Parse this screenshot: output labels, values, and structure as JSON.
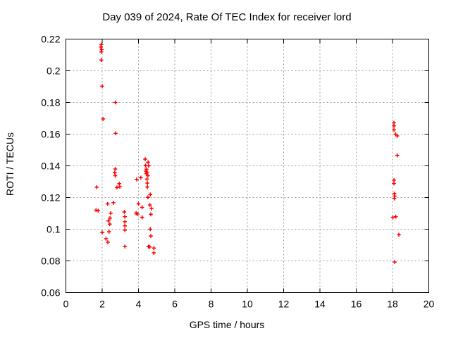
{
  "title": "Day 039 of 2024, Rate Of TEC Index for receiver lord",
  "axes": {
    "xlabel": "GPS time / hours",
    "ylabel": "ROTI / TECUs"
  },
  "colors": {
    "marker": "#ff0000",
    "grid": "#9c9c9c",
    "axis": "#000000",
    "background": "#ffffff"
  },
  "chart_data": {
    "type": "scatter",
    "title": "Day 039 of 2024, Rate Of TEC Index for receiver lord",
    "xlabel": "GPS time / hours",
    "ylabel": "ROTI / TECUs",
    "xlim": [
      0,
      20
    ],
    "ylim": [
      0.06,
      0.22
    ],
    "xticks": [
      0,
      2,
      4,
      6,
      8,
      10,
      12,
      14,
      16,
      18,
      20
    ],
    "xtick_labels": [
      "0",
      "2",
      "4",
      "6",
      "8",
      "10",
      "12",
      "14",
      "16",
      "18",
      "20"
    ],
    "yticks": [
      0.06,
      0.08,
      0.1,
      0.12,
      0.14,
      0.16,
      0.18,
      0.2,
      0.22
    ],
    "ytick_labels": [
      "0.06",
      "0.08",
      "0.1",
      "0.12",
      "0.14",
      "0.16",
      "0.18",
      "0.2",
      "0.22"
    ],
    "grid": true,
    "legend_position": "none",
    "marker": "plus",
    "marker_color": "#ff0000",
    "series": [
      {
        "name": "ROTI",
        "points": [
          [
            1.95,
            0.2165
          ],
          [
            1.93,
            0.215
          ],
          [
            1.97,
            0.2134
          ],
          [
            1.95,
            0.2119
          ],
          [
            1.95,
            0.2068
          ],
          [
            2.0,
            0.1903
          ],
          [
            2.73,
            0.18
          ],
          [
            2.05,
            0.1696
          ],
          [
            2.74,
            0.1605
          ],
          [
            2.72,
            0.138
          ],
          [
            2.69,
            0.1358
          ],
          [
            2.72,
            0.1338
          ],
          [
            2.94,
            0.1288
          ],
          [
            2.81,
            0.1263
          ],
          [
            2.97,
            0.1268
          ],
          [
            1.7,
            0.1265
          ],
          [
            2.3,
            0.116
          ],
          [
            2.62,
            0.1167
          ],
          [
            1.66,
            0.112
          ],
          [
            1.78,
            0.1117
          ],
          [
            2.47,
            0.1101
          ],
          [
            2.43,
            0.107
          ],
          [
            2.34,
            0.1053
          ],
          [
            2.42,
            0.1032
          ],
          [
            3.22,
            0.1109
          ],
          [
            3.25,
            0.1079
          ],
          [
            3.25,
            0.1047
          ],
          [
            3.25,
            0.1021
          ],
          [
            3.25,
            0.0994
          ],
          [
            2.0,
            0.0979
          ],
          [
            2.38,
            0.0984
          ],
          [
            2.21,
            0.094
          ],
          [
            2.31,
            0.0918
          ],
          [
            3.25,
            0.0891
          ],
          [
            4.37,
            0.1442
          ],
          [
            4.53,
            0.1423
          ],
          [
            4.39,
            0.1402
          ],
          [
            4.56,
            0.14
          ],
          [
            4.44,
            0.1379
          ],
          [
            4.41,
            0.1366
          ],
          [
            4.48,
            0.136
          ],
          [
            4.43,
            0.135
          ],
          [
            4.52,
            0.1338
          ],
          [
            4.13,
            0.1325
          ],
          [
            3.9,
            0.1314
          ],
          [
            4.47,
            0.1316
          ],
          [
            4.49,
            0.1291
          ],
          [
            4.49,
            0.1266
          ],
          [
            4.65,
            0.1219
          ],
          [
            4.52,
            0.1201
          ],
          [
            4.0,
            0.116
          ],
          [
            4.63,
            0.1153
          ],
          [
            4.2,
            0.1138
          ],
          [
            4.72,
            0.1131
          ],
          [
            3.87,
            0.1101
          ],
          [
            3.95,
            0.1096
          ],
          [
            4.68,
            0.1094
          ],
          [
            4.2,
            0.1075
          ],
          [
            4.65,
            0.1
          ],
          [
            4.68,
            0.0957
          ],
          [
            4.55,
            0.0891
          ],
          [
            4.62,
            0.0888
          ],
          [
            4.85,
            0.0881
          ],
          [
            4.85,
            0.0851
          ],
          [
            18.08,
            0.1671
          ],
          [
            18.08,
            0.1652
          ],
          [
            18.08,
            0.1627
          ],
          [
            18.17,
            0.16
          ],
          [
            18.26,
            0.1589
          ],
          [
            18.26,
            0.1466
          ],
          [
            18.08,
            0.131
          ],
          [
            18.08,
            0.1289
          ],
          [
            18.1,
            0.1225
          ],
          [
            18.12,
            0.1209
          ],
          [
            18.1,
            0.1194
          ],
          [
            18.02,
            0.1075
          ],
          [
            18.18,
            0.1079
          ],
          [
            18.35,
            0.0965
          ],
          [
            18.12,
            0.0793
          ]
        ]
      }
    ]
  }
}
